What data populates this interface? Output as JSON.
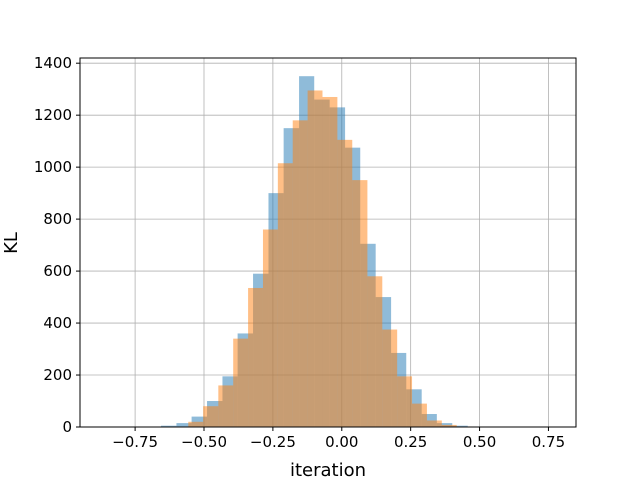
{
  "chart_data": {
    "type": "bar",
    "title": "",
    "xlabel": "iteration",
    "ylabel": "KL",
    "xlim": [
      -0.95,
      0.85
    ],
    "ylim": [
      0,
      1420
    ],
    "xticks": [
      -0.75,
      -0.5,
      -0.25,
      0.0,
      0.25,
      0.5,
      0.75
    ],
    "xtick_labels": [
      "−0.75",
      "−0.50",
      "−0.25",
      "0.00",
      "0.25",
      "0.50",
      "0.75"
    ],
    "yticks": [
      0,
      200,
      400,
      600,
      800,
      1000,
      1200,
      1400
    ],
    "ytick_labels": [
      "0",
      "200",
      "400",
      "600",
      "800",
      "1000",
      "1200",
      "1400"
    ],
    "grid": true,
    "series": [
      {
        "color": "#1f77b4",
        "opacity": 0.5,
        "bin_edges": [
          -0.656,
          -0.6,
          -0.545,
          -0.489,
          -0.433,
          -0.378,
          -0.322,
          -0.266,
          -0.211,
          -0.155,
          -0.1,
          -0.044,
          0.012,
          0.067,
          0.123,
          0.179,
          0.234,
          0.29,
          0.345,
          0.401,
          0.457
        ],
        "counts": [
          5,
          15,
          40,
          100,
          195,
          360,
          590,
          900,
          1150,
          1350,
          1260,
          1230,
          1075,
          705,
          500,
          285,
          145,
          50,
          15,
          5
        ]
      },
      {
        "color": "#ff7f0e",
        "opacity": 0.5,
        "bin_edges": [
          -0.611,
          -0.557,
          -0.503,
          -0.448,
          -0.394,
          -0.34,
          -0.286,
          -0.232,
          -0.178,
          -0.124,
          -0.07,
          -0.016,
          0.038,
          0.093,
          0.147,
          0.201,
          0.255,
          0.309,
          0.363,
          0.417,
          0.471
        ],
        "counts": [
          2,
          20,
          80,
          160,
          340,
          535,
          760,
          1015,
          1180,
          1295,
          1270,
          1105,
          950,
          580,
          375,
          195,
          90,
          25,
          8,
          2
        ]
      }
    ]
  }
}
